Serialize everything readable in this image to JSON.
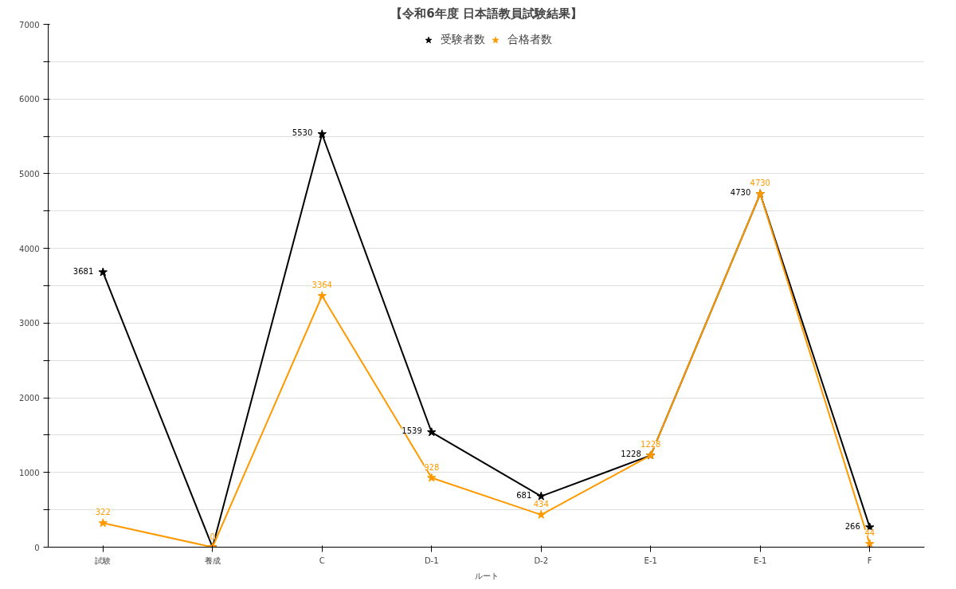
{
  "chart_data": {
    "type": "line",
    "title": "【令和6年度 日本語教員試験結果】",
    "xlabel": "ルート",
    "categories": [
      "試験",
      "養成",
      "C",
      "D-1",
      "D-2",
      "E-1",
      "E-1",
      "F"
    ],
    "series": [
      {
        "name": "受験者数",
        "color": "#000000",
        "values": [
          3681,
          0,
          5530,
          1539,
          681,
          1228,
          4730,
          266
        ],
        "value_labels": [
          "3681",
          null,
          "5530",
          "1539",
          "681",
          "1228",
          "4730",
          "266"
        ]
      },
      {
        "name": "合格者数",
        "color": "#ff9900",
        "values": [
          322,
          0,
          3364,
          928,
          434,
          1228,
          4730,
          44
        ],
        "value_labels": [
          "322",
          "0",
          "3364",
          "928",
          "434",
          "1228",
          "4730",
          "44"
        ]
      }
    ],
    "ylim": [
      0,
      7000
    ],
    "yticks": [
      0,
      {
        "value": 500,
        "label": null
      },
      1000,
      {
        "value": 1500,
        "label": null
      },
      2000,
      {
        "value": 2500,
        "label": null
      },
      3000,
      {
        "value": 3500,
        "label": null
      },
      4000,
      {
        "value": 4500,
        "label": null
      },
      5000,
      {
        "value": 5500,
        "label": null
      },
      6000,
      {
        "value": 6500,
        "label": null
      },
      7000
    ],
    "grid": "y",
    "legend": "top",
    "marker": "star",
    "line_style": "solid"
  }
}
